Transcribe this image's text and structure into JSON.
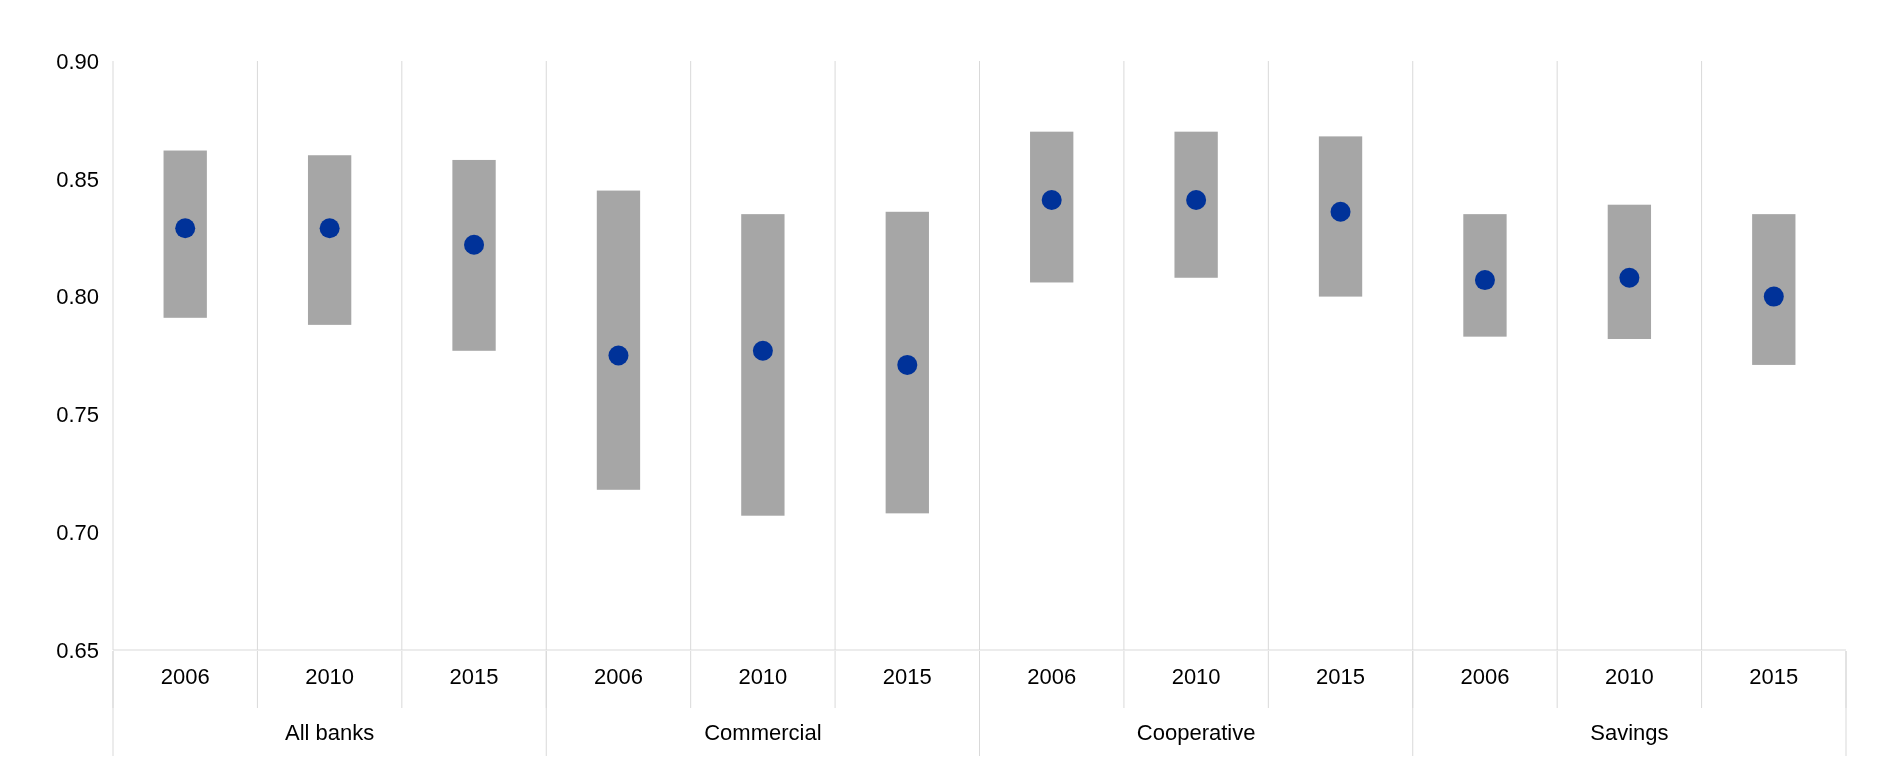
{
  "chart_data": {
    "type": "bar",
    "categories": [
      "2006",
      "2010",
      "2015",
      "2006",
      "2010",
      "2015",
      "2006",
      "2010",
      "2015",
      "2006",
      "2010",
      "2015"
    ],
    "annotations": [
      "All banks",
      "Commercial",
      "Cooperative",
      "Savings"
    ],
    "series": [
      {
        "color": "#a6a6a6",
        "base": [
          0.791,
          0.788,
          0.777,
          0.718,
          0.707,
          0.708,
          0.806,
          0.808,
          0.8,
          0.783,
          0.782,
          0.771
        ],
        "values": [
          0.071,
          0.072,
          0.081,
          0.127,
          0.128,
          0.128,
          0.064,
          0.062,
          0.068,
          0.052,
          0.057,
          0.064
        ]
      },
      {
        "type": "scatter",
        "color": "#003299",
        "marker": "circle",
        "values": [
          0.829,
          0.829,
          0.822,
          0.775,
          0.777,
          0.771,
          0.841,
          0.841,
          0.836,
          0.807,
          0.808,
          0.8
        ]
      }
    ],
    "ylim": [
      0.65,
      0.9
    ],
    "yticks": [
      {
        "value": 0.65,
        "label": "0.65"
      },
      {
        "value": 0.7,
        "label": "0.70"
      },
      {
        "value": 0.75,
        "label": "0.75"
      },
      {
        "value": 0.8,
        "label": "0.80"
      },
      {
        "value": 0.85,
        "label": "0.85"
      },
      {
        "value": 0.9,
        "label": "0.90"
      }
    ],
    "grid": "x"
  }
}
